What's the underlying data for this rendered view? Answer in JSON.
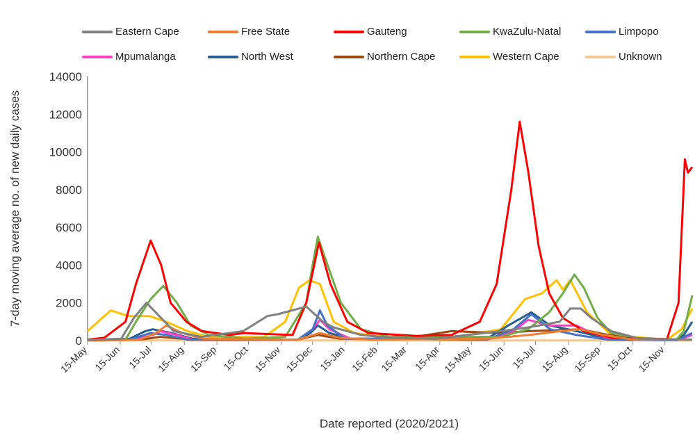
{
  "chart_data": {
    "type": "line",
    "title": "",
    "xlabel": "Date reported (2020/2021)",
    "ylabel": "7-day moving average no. of new daily cases",
    "ylim": [
      0,
      14000
    ],
    "yticks": [
      0,
      2000,
      4000,
      6000,
      8000,
      10000,
      12000,
      14000
    ],
    "x_unit": "days since 15-May-2020",
    "xlim": [
      0,
      575
    ],
    "xtick_labels": [
      "15-May",
      "15-Jun",
      "15-Jul",
      "15-Aug",
      "15-Sep",
      "15-Oct",
      "15-Nov",
      "15-Dec",
      "15-Jan",
      "15-Feb",
      "15-Mar",
      "15-Apr",
      "15-May",
      "15-Jun",
      "15-Jul",
      "15-Aug",
      "15-Sep",
      "15-Oct",
      "15-Nov"
    ],
    "xtick_days": [
      0,
      31,
      61,
      92,
      123,
      153,
      184,
      214,
      245,
      276,
      304,
      335,
      365,
      396,
      426,
      457,
      488,
      518,
      549
    ],
    "legend": "top",
    "series": [
      {
        "name": "Eastern Cape",
        "color": "#808080",
        "x": [
          0,
          32,
          44,
          56,
          70,
          82,
          108,
          148,
          171,
          181,
          208,
          224,
          234,
          260,
          287,
          330,
          393,
          419,
          449,
          459,
          469,
          479,
          498,
          525,
          575
        ],
        "y": [
          30,
          100,
          1200,
          2000,
          1200,
          500,
          200,
          500,
          1300,
          1400,
          1800,
          1000,
          700,
          300,
          150,
          100,
          500,
          700,
          1000,
          1700,
          1700,
          1200,
          500,
          100,
          50
        ]
      },
      {
        "name": "Free State",
        "color": "#ED7D31",
        "x": [
          0,
          50,
          65,
          75,
          90,
          110,
          200,
          221,
          240,
          270,
          380,
          420,
          450,
          469,
          490,
          520,
          575
        ],
        "y": [
          0,
          50,
          400,
          800,
          400,
          100,
          50,
          400,
          150,
          50,
          100,
          300,
          500,
          600,
          300,
          50,
          50
        ]
      },
      {
        "name": "Gauteng",
        "color": "#FF0000",
        "x": [
          0,
          16,
          36,
          46,
          60,
          70,
          79,
          94,
          109,
          135,
          148,
          195,
          208,
          220,
          231,
          247,
          267,
          313,
          346,
          373,
          389,
          403,
          411,
          419,
          429,
          439,
          452,
          472,
          499,
          551,
          562,
          568,
          571,
          575
        ],
        "y": [
          50,
          150,
          1000,
          3000,
          5300,
          4000,
          2000,
          1000,
          500,
          300,
          400,
          300,
          2000,
          5200,
          3000,
          1000,
          400,
          250,
          300,
          1000,
          3000,
          8000,
          11600,
          9000,
          5000,
          2500,
          1200,
          500,
          150,
          80,
          2000,
          9600,
          8900,
          9200
        ]
      },
      {
        "name": "KwaZulu-Natal",
        "color": "#70AD47",
        "x": [
          0,
          36,
          46,
          60,
          72,
          85,
          98,
          115,
          150,
          188,
          208,
          214,
          219,
          227,
          241,
          260,
          287,
          393,
          419,
          439,
          452,
          463,
          472,
          485,
          498,
          525,
          560,
          567,
          575
        ],
        "y": [
          0,
          50,
          1000,
          2200,
          2900,
          2000,
          800,
          300,
          100,
          200,
          2000,
          4000,
          5500,
          4200,
          2000,
          600,
          200,
          200,
          600,
          1500,
          2500,
          3500,
          2800,
          1200,
          400,
          100,
          50,
          500,
          2400
        ]
      },
      {
        "name": "Limpopo",
        "color": "#4472C4",
        "x": [
          0,
          40,
          60,
          75,
          95,
          200,
          214,
          221,
          228,
          245,
          380,
          405,
          422,
          440,
          465,
          495,
          560,
          575
        ],
        "y": [
          0,
          50,
          400,
          300,
          50,
          50,
          600,
          1600,
          800,
          100,
          50,
          600,
          1400,
          600,
          300,
          50,
          20,
          400
        ]
      },
      {
        "name": "Mpumalanga",
        "color": "#FF3FBF",
        "x": [
          0,
          45,
          62,
          69,
          85,
          100,
          200,
          214,
          221,
          230,
          250,
          380,
          405,
          419,
          440,
          465,
          480,
          500,
          560,
          575
        ],
        "y": [
          0,
          50,
          300,
          500,
          300,
          50,
          50,
          600,
          1100,
          600,
          100,
          50,
          500,
          1100,
          800,
          800,
          400,
          50,
          20,
          300
        ]
      },
      {
        "name": "North West",
        "color": "#255E91",
        "x": [
          0,
          40,
          55,
          62,
          80,
          100,
          200,
          212,
          219,
          230,
          250,
          380,
          400,
          422,
          440,
          465,
          495,
          560,
          567,
          575
        ],
        "y": [
          0,
          100,
          500,
          600,
          400,
          100,
          50,
          400,
          800,
          400,
          100,
          100,
          800,
          1500,
          800,
          500,
          100,
          20,
          300,
          1000
        ]
      },
      {
        "name": "Northern Cape",
        "color": "#9E480E",
        "x": [
          0,
          50,
          69,
          90,
          200,
          219,
          240,
          300,
          346,
          393,
          420,
          469,
          495,
          530,
          560,
          575
        ],
        "y": [
          0,
          50,
          200,
          100,
          50,
          300,
          100,
          100,
          500,
          400,
          500,
          600,
          300,
          50,
          50,
          300
        ]
      },
      {
        "name": "Western Cape",
        "color": "#FFC000",
        "x": [
          0,
          22,
          39,
          59,
          75,
          95,
          115,
          168,
          188,
          201,
          211,
          221,
          234,
          254,
          287,
          346,
          393,
          416,
          432,
          446,
          452,
          459,
          475,
          498,
          551,
          565,
          575
        ],
        "y": [
          500,
          1600,
          1300,
          1300,
          1000,
          500,
          200,
          200,
          1000,
          2800,
          3200,
          3000,
          1000,
          400,
          150,
          150,
          600,
          2200,
          2500,
          3200,
          2700,
          3200,
          1500,
          300,
          50,
          600,
          1700
        ]
      },
      {
        "name": "Unknown",
        "color": "#F4C790",
        "x": [
          0,
          575
        ],
        "y": [
          10,
          10
        ]
      }
    ]
  }
}
